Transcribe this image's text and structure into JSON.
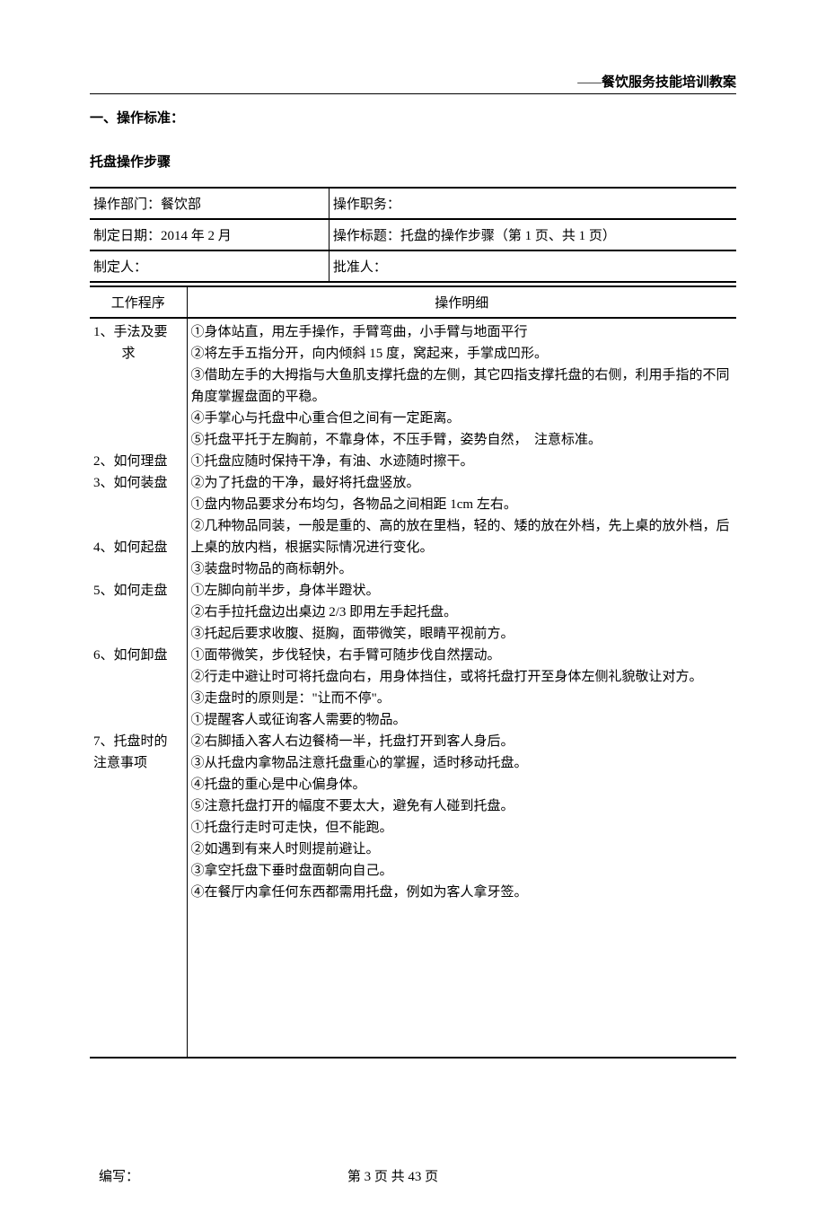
{
  "header": {
    "dashes": "——",
    "title": "餐饮服务技能培训教案"
  },
  "section_heading": "一、操作标准：",
  "sub_heading": "托盘操作步骤",
  "info_table": {
    "rows": [
      {
        "col1": "操作部门：餐饮部",
        "col2": "操作职务："
      },
      {
        "col1": "制定日期：2014 年 2 月",
        "col2": "操作标题：托盘的操作步骤（第 1 页、共 1 页）"
      },
      {
        "col1": "制定人：",
        "col2": "批准人："
      }
    ]
  },
  "content_table": {
    "header_col1": "工作程序",
    "header_col2": "操作明细",
    "procedures": [
      {
        "num": "1、",
        "label": "手法及要",
        "indent": "求"
      },
      {
        "num": "2、",
        "label": "如何理盘"
      },
      {
        "num": "3、",
        "label": "如何装盘"
      },
      {
        "blank": true
      },
      {
        "num": "4、",
        "label": "如何起盘"
      },
      {
        "blank": true
      },
      {
        "num": "5、",
        "label": "如何走盘"
      },
      {
        "blank": true
      },
      {
        "blank": true
      },
      {
        "num": "6、",
        "label": "如何卸盘"
      },
      {
        "blank": true
      },
      {
        "blank": true
      },
      {
        "blank": true
      },
      {
        "num": "7、",
        "label": "托盘时的",
        "indent2": "注意事项"
      }
    ],
    "details": [
      "①身体站直，用左手操作，手臂弯曲，小手臂与地面平行",
      "②将左手五指分开，向内倾斜 15 度，窝起来，手掌成凹形。",
      "③借助左手的大拇指与大鱼肌支撑托盘的左侧，其它四指支撑托盘的右侧，利用手指的不同角度掌握盘面的平稳。",
      "④手掌心与托盘中心重合但之间有一定距离。",
      "⑤托盘平托于左胸前，不靠身体，不压手臂，姿势自然，　注意标准。",
      "①托盘应随时保持干净，有油、水迹随时擦干。",
      "②为了托盘的干净，最好将托盘竖放。",
      "①盘内物品要求分布均匀，各物品之间相距 1cm 左右。",
      "②几种物品同装，一般是重的、高的放在里档，轻的、矮的放在外档，先上桌的放外档，后上桌的放内档，根据实际情况进行变化。",
      "③装盘时物品的商标朝外。",
      "①左脚向前半步，身体半蹬状。",
      "②右手拉托盘边出桌边 2/3 即用左手起托盘。",
      "③托起后要求收腹、挺胸，面带微笑，眼睛平视前方。",
      "①面带微笑，步伐轻快，右手臂可随步伐自然摆动。",
      "②行走中避让时可将托盘向右，用身体挡住，或将托盘打开至身体左侧礼貌敬让对方。",
      "③走盘时的原则是：\"让而不停\"。",
      "①提醒客人或征询客人需要的物品。",
      "②右脚插入客人右边餐椅一半，托盘打开到客人身后。",
      "③从托盘内拿物品注意托盘重心的掌握，适时移动托盘。",
      "④托盘的重心是中心偏身体。",
      "⑤注意托盘打开的幅度不要太大，避免有人碰到托盘。",
      "①托盘行走时可走快，但不能跑。",
      "②如遇到有来人时则提前避让。",
      "③拿空托盘下垂时盘面朝向自己。",
      "④在餐厅内拿任何东西都需用托盘，例如为客人拿牙签。"
    ]
  },
  "footer": {
    "left": "编写：",
    "center": "第 3 页 共 43 页"
  }
}
